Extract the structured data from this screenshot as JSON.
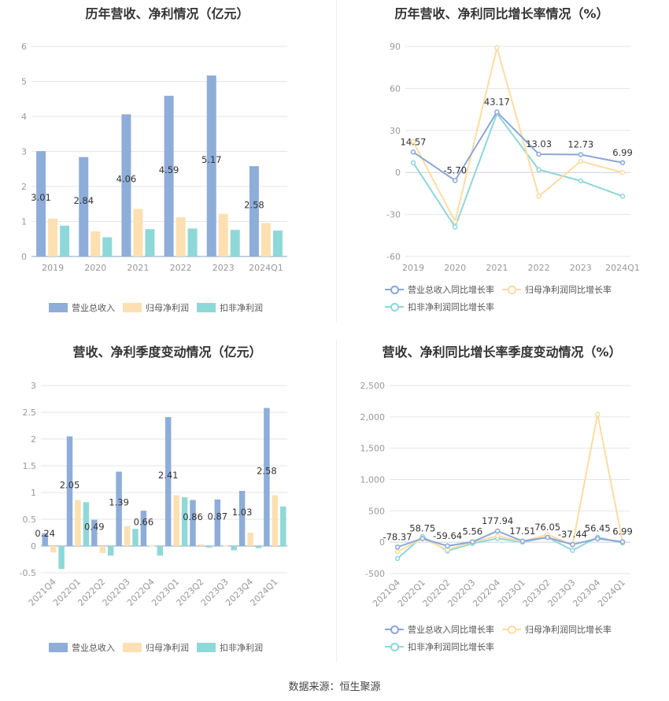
{
  "source": "数据来源：恒生聚源",
  "colors": {
    "revenue": "#8eadd9",
    "net_profit": "#fde0b1",
    "deducted_profit": "#8fd8d8",
    "rev_line": "#8ba7d6",
    "np_line": "#fcdca4",
    "dp_line": "#8ed6db"
  },
  "panels": [
    {
      "title": "历年营收、净利情况（亿元）",
      "legend": [
        "营业总收入",
        "归母净利润",
        "扣非净利润"
      ],
      "chart_data": {
        "type": "bar",
        "categories": [
          "2019",
          "2020",
          "2021",
          "2022",
          "2023",
          "2024Q1"
        ],
        "series": [
          {
            "name": "营业总收入",
            "values": [
              3.01,
              2.84,
              4.06,
              4.59,
              5.17,
              2.58
            ]
          },
          {
            "name": "归母净利润",
            "values": [
              1.08,
              0.72,
              1.36,
              1.12,
              1.22,
              0.95
            ]
          },
          {
            "name": "扣非净利润",
            "values": [
              0.88,
              0.55,
              0.78,
              0.8,
              0.76,
              0.74
            ]
          }
        ],
        "labels": [
          "3.01",
          "2.84",
          "4.06",
          "4.59",
          "5.17",
          "2.58"
        ],
        "yticks": [
          "0",
          "1",
          "2",
          "3",
          "4",
          "5",
          "6"
        ],
        "ylim": [
          0,
          6
        ]
      }
    },
    {
      "title": "历年营收、净利同比增长率情况（%）",
      "legend": [
        "营业总收入同比增长率",
        "归母净利润同比增长率",
        "扣非净利润同比增长率"
      ],
      "chart_data": {
        "type": "line",
        "categories": [
          "2019",
          "2020",
          "2021",
          "2022",
          "2023",
          "2024Q1"
        ],
        "series": [
          {
            "name": "营业总收入同比增长率",
            "values": [
              14.57,
              -5.7,
              43.17,
              13.03,
              12.73,
              6.99
            ]
          },
          {
            "name": "归母净利润同比增长率",
            "values": [
              22,
              -35,
              89,
              -17,
              8,
              0
            ]
          },
          {
            "name": "扣非净利润同比增长率",
            "values": [
              7,
              -39,
              42,
              2,
              -6,
              -17
            ]
          }
        ],
        "labels": [
          "14.57",
          "-5.70",
          "43.17",
          "13.03",
          "12.73",
          "6.99"
        ],
        "yticks": [
          "-60",
          "-30",
          "0",
          "30",
          "60",
          "90"
        ],
        "ylim": [
          -60,
          90
        ]
      }
    },
    {
      "title": "营收、净利季度变动情况（亿元）",
      "legend": [
        "营业总收入",
        "归母净利润",
        "扣非净利润"
      ],
      "chart_data": {
        "type": "bar",
        "categories": [
          "2021Q4",
          "2022Q1",
          "2022Q2",
          "2022Q3",
          "2022Q4",
          "2023Q1",
          "2023Q2",
          "2023Q3",
          "2023Q4",
          "2024Q1"
        ],
        "series": [
          {
            "name": "营业总收入",
            "values": [
              0.24,
              2.05,
              0.49,
              1.39,
              0.66,
              2.41,
              0.86,
              0.87,
              1.03,
              2.58
            ]
          },
          {
            "name": "归母净利润",
            "values": [
              -0.12,
              0.86,
              -0.13,
              0.37,
              0.01,
              0.95,
              0.03,
              0.01,
              0.25,
              0.95
            ]
          },
          {
            "name": "扣非净利润",
            "values": [
              -0.43,
              0.82,
              -0.18,
              0.32,
              -0.18,
              0.91,
              -0.03,
              -0.08,
              -0.04,
              0.74
            ]
          }
        ],
        "labels": [
          "0.24",
          "2.05",
          "0.49",
          "1.39",
          "0.66",
          "2.41",
          "0.86",
          "0.87",
          "1.03",
          "2.58"
        ],
        "yticks": [
          "-0.5",
          "0",
          "0.5",
          "1",
          "1.5",
          "2",
          "2.5",
          "3"
        ],
        "ylim": [
          -0.5,
          3
        ]
      }
    },
    {
      "title": "营收、净利同比增长率季度变动情况（%）",
      "legend": [
        "营业总收入同比增长率",
        "归母净利润同比增长率",
        "扣非净利润同比增长率"
      ],
      "chart_data": {
        "type": "line",
        "categories": [
          "2021Q4",
          "2022Q1",
          "2022Q2",
          "2022Q3",
          "2022Q4",
          "2023Q1",
          "2023Q2",
          "2023Q3",
          "2023Q4",
          "2024Q1"
        ],
        "series": [
          {
            "name": "营业总收入同比增长率",
            "values": [
              -78.37,
              58.75,
              -59.64,
              5.56,
              177.94,
              17.51,
              76.05,
              -37.44,
              56.45,
              6.99
            ]
          },
          {
            "name": "归母净利润同比增长率",
            "values": [
              -150,
              60,
              -120,
              0,
              100,
              10,
              120,
              -40,
              2040,
              5
            ]
          },
          {
            "name": "扣非净利润同比增长率",
            "values": [
              -260,
              90,
              -140,
              -20,
              60,
              0,
              80,
              -130,
              80,
              -10
            ]
          }
        ],
        "labels": [
          "-78.37",
          "58.75",
          "-59.64",
          "5.56",
          "177.94",
          "17.51",
          "76.05",
          "-37.44",
          "56.45",
          "6.99"
        ],
        "yticks": [
          "-500",
          "0",
          "500",
          "1,000",
          "1,500",
          "2,000",
          "2,500"
        ],
        "ylim": [
          -500,
          2500
        ]
      }
    }
  ]
}
